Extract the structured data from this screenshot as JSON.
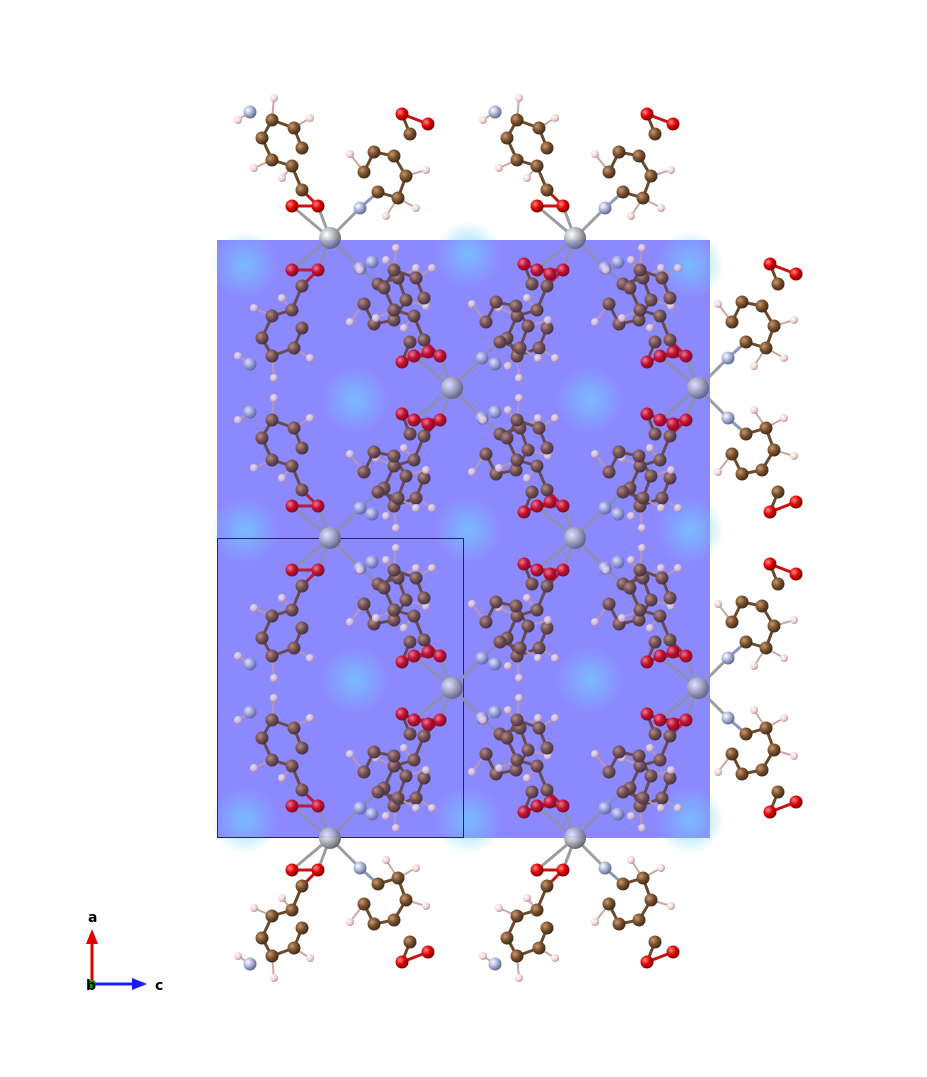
{
  "axes": {
    "a_label": "a",
    "b_label": "b",
    "c_label": "c",
    "a_color": "#e00000",
    "b_color": "#009900",
    "c_color": "#1a1aff"
  },
  "colors": {
    "background": "#ffffff",
    "density_map": "#8f8cff",
    "density_light": "#7fd8ff",
    "cell_outline": "#1a1a40",
    "metal": "#a9acb0",
    "carbon": "#7a5230",
    "oxygen": "#e00000",
    "nitrogen": "#a8b2d6",
    "hydrogen": "#f1d2d2"
  },
  "legend": {
    "icon": "crystal-axes-icon"
  }
}
